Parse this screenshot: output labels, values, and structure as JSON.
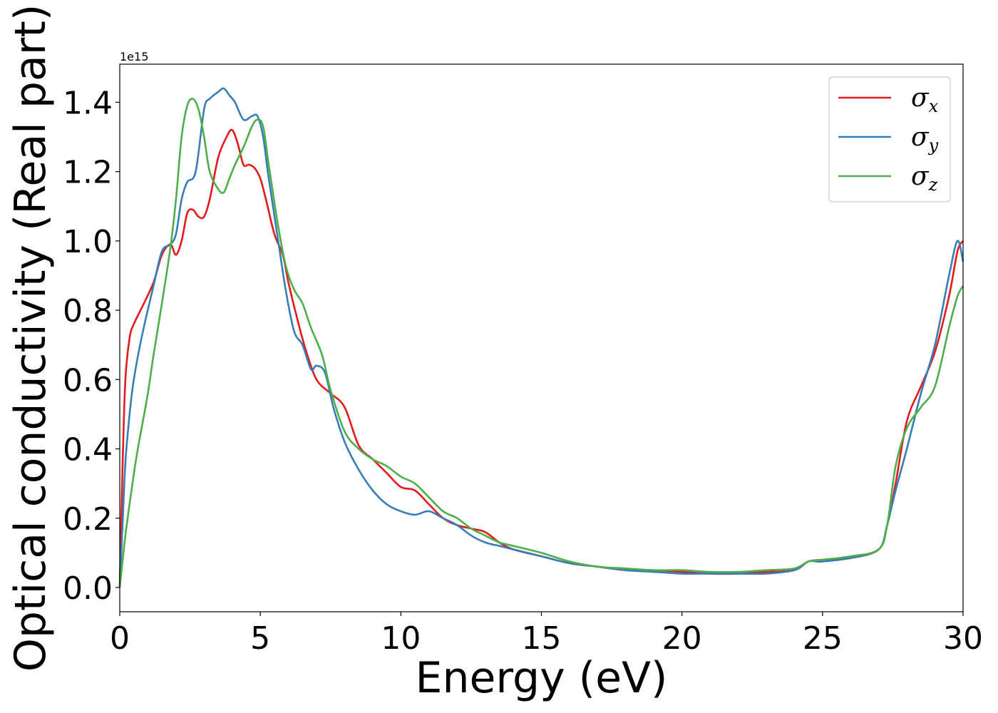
{
  "chart_data": {
    "type": "line",
    "title": "",
    "xlabel": "Energy (eV)",
    "ylabel": "Optical conductivity (Real part)",
    "y_offset_text": "1e15",
    "xlim": [
      0,
      30
    ],
    "ylim": [
      -0.07,
      1.51
    ],
    "y_scale_factor": 1000000000000000.0,
    "xticks": [
      0,
      5,
      10,
      15,
      20,
      25,
      30
    ],
    "xtick_labels": [
      "0",
      "5",
      "10",
      "15",
      "20",
      "25",
      "30"
    ],
    "yticks": [
      0.0,
      0.2,
      0.4,
      0.6,
      0.8,
      1.0,
      1.2,
      1.4
    ],
    "ytick_labels": [
      "0.0",
      "0.2",
      "0.4",
      "0.6",
      "0.8",
      "1.0",
      "1.2",
      "1.4"
    ],
    "grid": false,
    "legend_position": "top-right",
    "series": [
      {
        "name": "σ",
        "subscript": "x",
        "color": "#e41a1c",
        "x": [
          0,
          0.1,
          0.2,
          0.35,
          0.5,
          0.8,
          1.2,
          1.5,
          1.8,
          2.0,
          2.2,
          2.4,
          2.6,
          2.8,
          3.0,
          3.2,
          3.5,
          3.8,
          4.0,
          4.2,
          4.4,
          4.6,
          4.8,
          5.0,
          5.2,
          5.5,
          5.8,
          6.0,
          6.3,
          6.6,
          7.0,
          7.5,
          8.0,
          8.5,
          9.0,
          9.5,
          10.0,
          10.5,
          11.0,
          11.5,
          12.0,
          12.5,
          13.0,
          13.5,
          14.0,
          15.0,
          16.0,
          17.0,
          18.0,
          19.0,
          20.0,
          21.0,
          22.0,
          23.0,
          24.0,
          24.5,
          25.0,
          26.0,
          27.0,
          27.3,
          27.6,
          28.0,
          28.5,
          29.0,
          29.5,
          29.8,
          30.0
        ],
        "values": [
          0.0,
          0.35,
          0.6,
          0.72,
          0.76,
          0.81,
          0.88,
          0.96,
          0.99,
          0.96,
          1.0,
          1.08,
          1.09,
          1.07,
          1.07,
          1.12,
          1.24,
          1.3,
          1.32,
          1.28,
          1.22,
          1.22,
          1.21,
          1.18,
          1.12,
          1.02,
          0.96,
          0.88,
          0.78,
          0.69,
          0.6,
          0.56,
          0.52,
          0.41,
          0.37,
          0.33,
          0.29,
          0.28,
          0.24,
          0.2,
          0.18,
          0.17,
          0.16,
          0.13,
          0.11,
          0.09,
          0.07,
          0.06,
          0.05,
          0.05,
          0.045,
          0.04,
          0.04,
          0.045,
          0.05,
          0.075,
          0.08,
          0.085,
          0.11,
          0.18,
          0.3,
          0.48,
          0.58,
          0.68,
          0.84,
          0.97,
          1.0
        ]
      },
      {
        "name": "σ",
        "subscript": "y",
        "color": "#377eb8",
        "x": [
          0,
          0.1,
          0.2,
          0.35,
          0.5,
          0.8,
          1.2,
          1.5,
          1.8,
          2.0,
          2.2,
          2.4,
          2.7,
          3.0,
          3.2,
          3.5,
          3.7,
          3.9,
          4.1,
          4.4,
          4.7,
          4.9,
          5.1,
          5.3,
          5.6,
          5.9,
          6.2,
          6.5,
          6.8,
          7.0,
          7.3,
          7.6,
          8.0,
          8.5,
          9.0,
          9.5,
          10.0,
          10.5,
          11.0,
          11.5,
          12.0,
          12.5,
          13.0,
          13.5,
          14.0,
          15.0,
          16.0,
          17.0,
          18.0,
          19.0,
          20.0,
          21.0,
          22.0,
          23.0,
          24.0,
          24.5,
          25.0,
          26.0,
          27.0,
          27.3,
          27.6,
          28.0,
          28.5,
          29.0,
          29.5,
          29.8,
          30.0
        ],
        "values": [
          0.0,
          0.18,
          0.36,
          0.5,
          0.6,
          0.73,
          0.87,
          0.97,
          0.99,
          1.02,
          1.12,
          1.17,
          1.2,
          1.38,
          1.41,
          1.43,
          1.44,
          1.42,
          1.4,
          1.35,
          1.36,
          1.36,
          1.3,
          1.18,
          1.02,
          0.86,
          0.74,
          0.7,
          0.63,
          0.64,
          0.62,
          0.52,
          0.42,
          0.34,
          0.28,
          0.24,
          0.22,
          0.21,
          0.22,
          0.2,
          0.18,
          0.15,
          0.13,
          0.12,
          0.11,
          0.09,
          0.07,
          0.06,
          0.05,
          0.045,
          0.04,
          0.04,
          0.04,
          0.04,
          0.05,
          0.075,
          0.075,
          0.085,
          0.11,
          0.18,
          0.28,
          0.4,
          0.56,
          0.7,
          0.9,
          1.0,
          0.94
        ]
      },
      {
        "name": "σ",
        "subscript": "z",
        "color": "#4daf4a",
        "x": [
          0,
          0.2,
          0.4,
          0.6,
          0.8,
          1.0,
          1.2,
          1.5,
          1.8,
          2.0,
          2.2,
          2.4,
          2.6,
          2.8,
          3.0,
          3.2,
          3.5,
          3.7,
          3.9,
          4.1,
          4.4,
          4.7,
          4.9,
          5.1,
          5.3,
          5.6,
          5.9,
          6.2,
          6.5,
          6.8,
          7.2,
          7.5,
          8.0,
          8.5,
          9.0,
          9.5,
          10.0,
          10.5,
          11.0,
          11.5,
          12.0,
          12.5,
          13.0,
          13.5,
          14.0,
          15.0,
          16.0,
          17.0,
          18.0,
          19.0,
          20.0,
          21.0,
          22.0,
          23.0,
          24.0,
          24.5,
          25.0,
          26.0,
          27.0,
          27.3,
          27.6,
          28.0,
          28.5,
          29.0,
          29.5,
          29.8,
          30.0
        ],
        "values": [
          0.0,
          0.15,
          0.27,
          0.38,
          0.47,
          0.56,
          0.67,
          0.82,
          0.98,
          1.12,
          1.3,
          1.39,
          1.41,
          1.38,
          1.3,
          1.2,
          1.15,
          1.14,
          1.18,
          1.22,
          1.27,
          1.33,
          1.35,
          1.33,
          1.22,
          1.06,
          0.93,
          0.86,
          0.82,
          0.75,
          0.67,
          0.57,
          0.45,
          0.4,
          0.37,
          0.35,
          0.32,
          0.3,
          0.26,
          0.22,
          0.2,
          0.17,
          0.15,
          0.13,
          0.12,
          0.1,
          0.075,
          0.06,
          0.055,
          0.05,
          0.05,
          0.045,
          0.045,
          0.05,
          0.055,
          0.075,
          0.08,
          0.09,
          0.11,
          0.18,
          0.35,
          0.46,
          0.52,
          0.58,
          0.75,
          0.84,
          0.87
        ]
      }
    ]
  }
}
